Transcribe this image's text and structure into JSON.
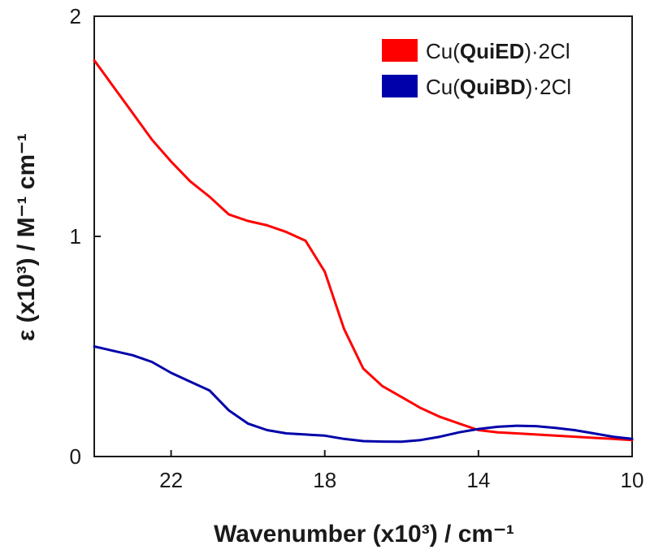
{
  "chart_data": {
    "type": "line",
    "xlabel": "Wavenumber (x10³) / cm⁻¹",
    "ylabel": "ε (x10³) / M⁻¹ cm⁻¹",
    "xlim": [
      24,
      10
    ],
    "ylim": [
      0,
      2
    ],
    "x_ticks": [
      22,
      18,
      14,
      10
    ],
    "y_ticks": [
      0,
      1,
      2
    ],
    "x_reversed": true,
    "grid": false,
    "legend_position": "top-right",
    "series": [
      {
        "name_prefix": "Cu(",
        "name_bold": "QuiED",
        "name_suffix": ")·2Cl",
        "color": "#ff0000",
        "x": [
          24,
          23.5,
          23,
          22.5,
          22,
          21.5,
          21,
          20.5,
          20,
          19.5,
          19,
          18.5,
          18,
          17.5,
          17,
          16.5,
          16,
          15.5,
          15,
          14.5,
          14,
          13.5,
          13,
          12.5,
          12,
          11.5,
          11,
          10.5,
          10
        ],
        "y": [
          1.8,
          1.68,
          1.56,
          1.44,
          1.34,
          1.25,
          1.18,
          1.1,
          1.07,
          1.05,
          1.02,
          0.98,
          0.84,
          0.58,
          0.4,
          0.32,
          0.27,
          0.22,
          0.18,
          0.15,
          0.12,
          0.11,
          0.105,
          0.1,
          0.095,
          0.09,
          0.085,
          0.08,
          0.075
        ]
      },
      {
        "name_prefix": "Cu(",
        "name_bold": "QuiBD",
        "name_suffix": ")·2Cl",
        "color": "#0000aa",
        "x": [
          24,
          23.5,
          23,
          22.5,
          22,
          21.5,
          21,
          20.5,
          20,
          19.5,
          19,
          18.5,
          18,
          17.5,
          17,
          16.5,
          16,
          15.5,
          15,
          14.5,
          14,
          13.5,
          13,
          12.5,
          12,
          11.5,
          11,
          10.5,
          10
        ],
        "y": [
          0.5,
          0.48,
          0.46,
          0.43,
          0.38,
          0.34,
          0.3,
          0.21,
          0.15,
          0.12,
          0.105,
          0.1,
          0.095,
          0.08,
          0.07,
          0.068,
          0.067,
          0.075,
          0.09,
          0.11,
          0.125,
          0.135,
          0.14,
          0.138,
          0.13,
          0.12,
          0.105,
          0.09,
          0.08
        ]
      }
    ]
  }
}
